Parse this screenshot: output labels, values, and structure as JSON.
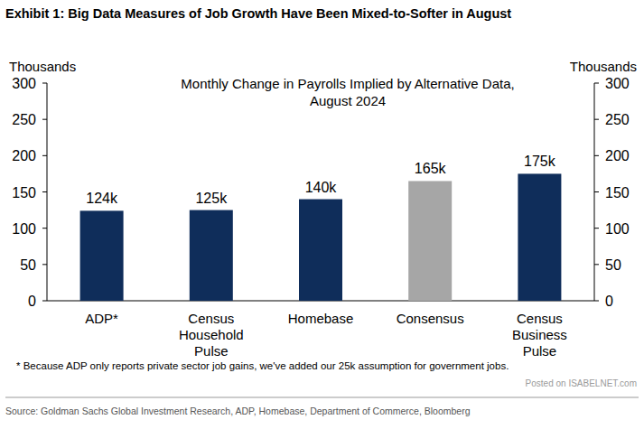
{
  "chart_data": {
    "type": "bar",
    "title": "Exhibit 1: Big Data Measures of Job Growth Have Been Mixed-to-Softer in August",
    "subtitle": [
      "Monthly Change in Payrolls Implied by Alternative Data,",
      "August 2024"
    ],
    "y_label": "Thousands",
    "y2_label": "Thousands",
    "categories": [
      "ADP*",
      "Census Household Pulse",
      "Homebase",
      "Consensus",
      "Census Business Pulse"
    ],
    "values": [
      124,
      125,
      140,
      165,
      175
    ],
    "value_labels": [
      "124k",
      "125k",
      "140k",
      "165k",
      "175k"
    ],
    "colors": [
      "#0f2d5a",
      "#0f2d5a",
      "#0f2d5a",
      "#a6a6a6",
      "#0f2d5a"
    ],
    "ylim": [
      0,
      300
    ],
    "yticks": [
      0,
      50,
      100,
      150,
      200,
      250,
      300
    ],
    "y2lim": [
      0,
      300
    ],
    "y2ticks": [
      0,
      50,
      100,
      150,
      200,
      250,
      300
    ],
    "grid": false,
    "data_labels": true,
    "footnote": "* Because ADP only reports private sector job gains, we've added our 25k assumption for government jobs.",
    "source": "Source: Goldman Sachs Global Investment Research, ADP, Homebase, Department of Commerce, Bloomberg",
    "watermark": "Posted on ISABELNET.com"
  }
}
